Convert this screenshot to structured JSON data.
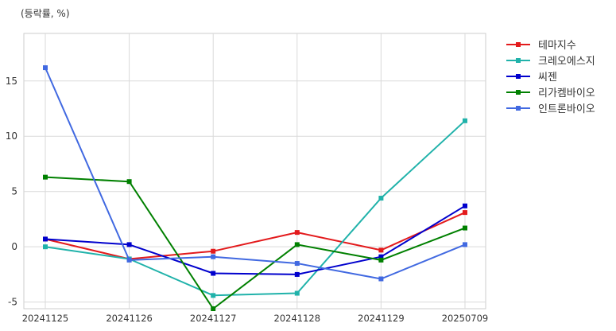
{
  "chart_data": {
    "type": "line",
    "title": "",
    "unit_label": "(등락률, %)",
    "xlabel": "",
    "ylabel": "",
    "categories": [
      "20241125",
      "20241126",
      "20241127",
      "20241128",
      "20241129",
      "20250709"
    ],
    "yticks": [
      -5,
      0,
      5,
      10,
      15
    ],
    "ylim": [
      -5.6,
      19.3
    ],
    "grid": true,
    "legend_position": "right",
    "series": [
      {
        "name": "테마지수",
        "color": "#e31a1c",
        "values": [
          0.7,
          -1.1,
          -0.4,
          1.3,
          -0.3,
          3.1
        ]
      },
      {
        "name": "크레오에스지",
        "color": "#20b2aa",
        "values": [
          0.0,
          -1.1,
          -4.4,
          -4.2,
          4.4,
          11.4
        ]
      },
      {
        "name": "씨젠",
        "color": "#0000cd",
        "values": [
          0.7,
          0.2,
          -2.4,
          -2.5,
          -0.9,
          3.7
        ]
      },
      {
        "name": "리가켐바이오",
        "color": "#008000",
        "values": [
          6.3,
          5.9,
          -5.6,
          0.2,
          -1.2,
          1.7
        ]
      },
      {
        "name": "인트론바이오",
        "color": "#4169e1",
        "values": [
          16.2,
          -1.2,
          -0.9,
          -1.5,
          -2.9,
          0.2
        ]
      }
    ]
  }
}
